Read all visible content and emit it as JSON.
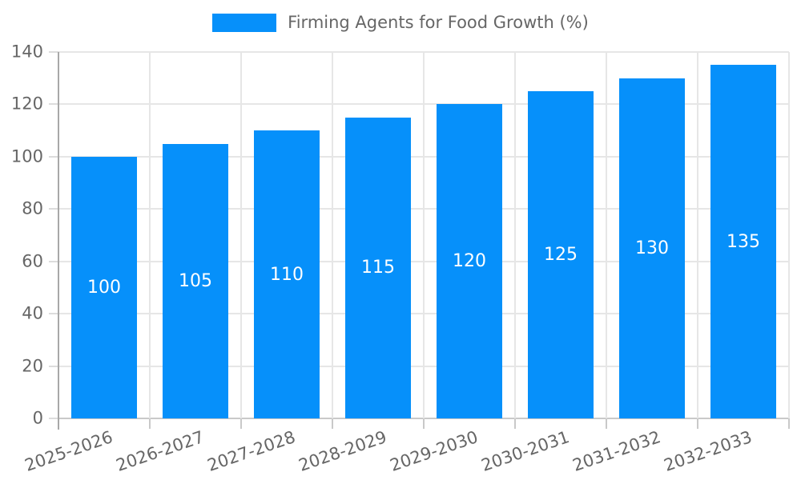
{
  "chart_data": {
    "type": "bar",
    "title": "",
    "legend_position": "top",
    "categories": [
      "2025-2026",
      "2026-2027",
      "2027-2028",
      "2028-2029",
      "2029-2030",
      "2030-2031",
      "2031-2032",
      "2032-2033"
    ],
    "series": [
      {
        "name": "Firming Agents for Food Growth (%)",
        "values": [
          100,
          105,
          110,
          115,
          120,
          125,
          130,
          135
        ]
      }
    ],
    "xlabel": "",
    "ylabel": "",
    "ylim": [
      0,
      140
    ],
    "ytick_step": 20,
    "yticks": [
      0,
      20,
      40,
      60,
      80,
      100,
      120,
      140
    ],
    "grid": true,
    "bar_value_labels": "inside-center",
    "colors": {
      "bar": "#0690FA",
      "bar_label_text": "#ffffff",
      "axis_text": "#666666",
      "gridline": "#e6e6e6",
      "y_tick": "#dcdcdc",
      "x_tick": "#c9c9c9",
      "axis_line": "#a8a8a8",
      "background": "#ffffff"
    }
  }
}
